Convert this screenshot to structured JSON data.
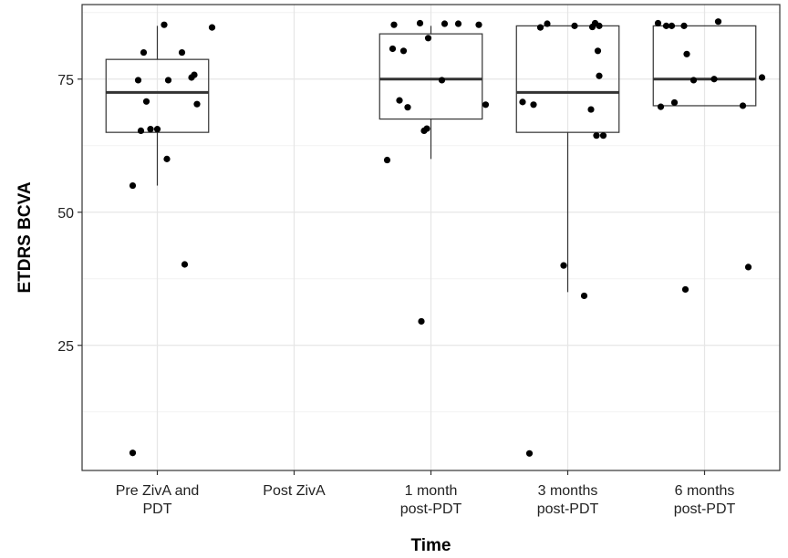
{
  "chart_data": {
    "type": "box",
    "xlabel": "Time",
    "ylabel": "ETDRS BCVA",
    "categories": [
      [
        "Pre ZivA and",
        "PDT"
      ],
      [
        "Post ZivA"
      ],
      [
        "1 month",
        "post-PDT"
      ],
      [
        "3 months",
        "post-PDT"
      ],
      [
        "6 months",
        "post-PDT"
      ]
    ],
    "y_ticks": [
      25,
      50,
      75
    ],
    "ylim": [
      1.5,
      89
    ],
    "grid": true,
    "boxes": [
      {
        "category_index": 0,
        "whisker_low": 55,
        "q1": 65,
        "median": 72.5,
        "q3": 78.7,
        "whisker_high": 85
      },
      {
        "category_index": 2,
        "whisker_low": 60,
        "q1": 67.5,
        "median": 75,
        "q3": 83.5,
        "whisker_high": 85
      },
      {
        "category_index": 3,
        "whisker_low": 35,
        "q1": 65,
        "median": 72.5,
        "q3": 85,
        "whisker_high": 85
      },
      {
        "category_index": 4,
        "whisker_low": 70,
        "q1": 70,
        "median": 75,
        "q3": 85,
        "whisker_high": 85
      }
    ],
    "points": [
      {
        "x": 0.82,
        "y": 55
      },
      {
        "x": 0.86,
        "y": 74.8
      },
      {
        "x": 0.88,
        "y": 65.3
      },
      {
        "x": 0.9,
        "y": 80
      },
      {
        "x": 0.92,
        "y": 70.8
      },
      {
        "x": 0.95,
        "y": 65.6
      },
      {
        "x": 1.0,
        "y": 65.6
      },
      {
        "x": 1.05,
        "y": 85.2
      },
      {
        "x": 1.07,
        "y": 60
      },
      {
        "x": 1.08,
        "y": 74.8
      },
      {
        "x": 1.18,
        "y": 80
      },
      {
        "x": 1.2,
        "y": 40.2
      },
      {
        "x": 1.25,
        "y": 75.3
      },
      {
        "x": 1.27,
        "y": 75.8
      },
      {
        "x": 1.29,
        "y": 70.3
      },
      {
        "x": 1.4,
        "y": 84.7
      },
      {
        "x": 0.82,
        "y": 4.8
      },
      {
        "x": 2.68,
        "y": 59.8
      },
      {
        "x": 2.72,
        "y": 80.7
      },
      {
        "x": 2.73,
        "y": 85.2
      },
      {
        "x": 2.77,
        "y": 71
      },
      {
        "x": 2.8,
        "y": 80.3
      },
      {
        "x": 2.83,
        "y": 69.7
      },
      {
        "x": 2.92,
        "y": 85.5
      },
      {
        "x": 2.93,
        "y": 29.5
      },
      {
        "x": 2.95,
        "y": 65.3
      },
      {
        "x": 2.98,
        "y": 82.7
      },
      {
        "x": 2.97,
        "y": 65.7
      },
      {
        "x": 3.08,
        "y": 74.8
      },
      {
        "x": 3.1,
        "y": 85.4
      },
      {
        "x": 3.2,
        "y": 85.4
      },
      {
        "x": 3.35,
        "y": 85.2
      },
      {
        "x": 3.4,
        "y": 70.2
      },
      {
        "x": 3.67,
        "y": 70.7
      },
      {
        "x": 3.75,
        "y": 70.2
      },
      {
        "x": 3.8,
        "y": 84.7
      },
      {
        "x": 3.85,
        "y": 85.4
      },
      {
        "x": 3.72,
        "y": 4.7
      },
      {
        "x": 3.97,
        "y": 40
      },
      {
        "x": 4.05,
        "y": 85
      },
      {
        "x": 4.12,
        "y": 34.3
      },
      {
        "x": 4.17,
        "y": 69.3
      },
      {
        "x": 4.18,
        "y": 84.8
      },
      {
        "x": 4.2,
        "y": 85.5
      },
      {
        "x": 4.21,
        "y": 64.4
      },
      {
        "x": 4.22,
        "y": 80.3
      },
      {
        "x": 4.23,
        "y": 85
      },
      {
        "x": 4.23,
        "y": 75.6
      },
      {
        "x": 4.26,
        "y": 64.4
      },
      {
        "x": 4.66,
        "y": 85.5
      },
      {
        "x": 4.68,
        "y": 69.8
      },
      {
        "x": 4.72,
        "y": 85
      },
      {
        "x": 4.76,
        "y": 85
      },
      {
        "x": 4.78,
        "y": 70.6
      },
      {
        "x": 4.85,
        "y": 85
      },
      {
        "x": 4.86,
        "y": 35.5
      },
      {
        "x": 4.87,
        "y": 79.7
      },
      {
        "x": 4.92,
        "y": 74.8
      },
      {
        "x": 5.07,
        "y": 75
      },
      {
        "x": 5.1,
        "y": 85.8
      },
      {
        "x": 5.28,
        "y": 70
      },
      {
        "x": 5.32,
        "y": 39.7
      },
      {
        "x": 5.42,
        "y": 75.3
      }
    ],
    "colors": {
      "grid_major": "#e6e6e6",
      "grid_minor": "#f2f2f2",
      "panel_border": "#333333",
      "box_stroke": "#333333",
      "point": "#000000"
    }
  }
}
